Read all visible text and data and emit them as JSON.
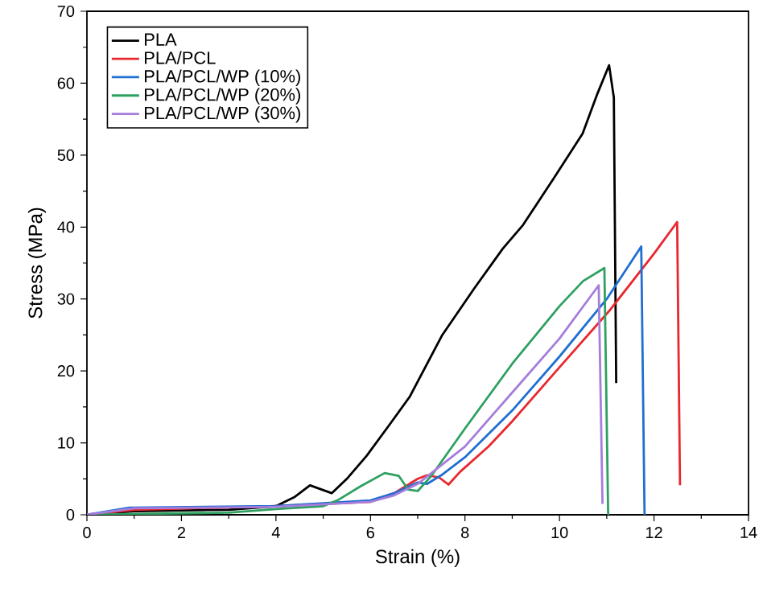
{
  "chart_data": {
    "type": "line",
    "xlabel": "Strain (%)",
    "ylabel": "Stress (MPa)",
    "xlim": [
      0,
      14
    ],
    "xticks": [
      0,
      2,
      4,
      6,
      8,
      10,
      12,
      14
    ],
    "ylim": [
      0,
      70
    ],
    "yticks": [
      0,
      10,
      20,
      30,
      40,
      50,
      60,
      70
    ],
    "grid": false,
    "legend": "top left",
    "marker": "none",
    "line_style": "solid",
    "series": [
      {
        "name": "PLA",
        "color": "#000000",
        "x": [
          0,
          1,
          3,
          4,
          4.4,
          4.72,
          5.18,
          5.5,
          5.92,
          6.4,
          6.83,
          7.52,
          8.2,
          8.8,
          9.23,
          9.9,
          10.49,
          10.8,
          11.05,
          11.15,
          11.2
        ],
        "values": [
          0,
          0.5,
          0.7,
          1.2,
          2.5,
          4.1,
          3.0,
          5,
          8.2,
          12.5,
          16.4,
          25,
          31.5,
          37,
          40.3,
          47,
          53,
          58.5,
          62.5,
          58,
          18.3
        ]
      },
      {
        "name": "PLA/PCL",
        "color": "#e8282e",
        "x": [
          0,
          1,
          4,
          6,
          6.5,
          7,
          7.2,
          7.45,
          7.65,
          7.9,
          8.5,
          9,
          10,
          11.06,
          12,
          12.49,
          12.55
        ],
        "values": [
          0,
          0.7,
          1.2,
          1.8,
          3,
          5,
          5.5,
          5.2,
          4.2,
          6,
          9.5,
          13,
          20.5,
          28.4,
          36.3,
          40.7,
          4.1
        ]
      },
      {
        "name": "PLA/PCL/WP (10%)",
        "color": "#1f6fd1",
        "x": [
          0,
          0.9,
          4,
          6,
          6.5,
          7,
          7.2,
          7.5,
          8,
          9,
          10,
          11,
          11.73,
          11.8
        ],
        "values": [
          0,
          1,
          1.2,
          2,
          3,
          4.5,
          4.3,
          5.5,
          8,
          14.5,
          22,
          30,
          37.3,
          0
        ]
      },
      {
        "name": "PLA/PCL/WP (20%)",
        "color": "#2ea060",
        "x": [
          0,
          3,
          4,
          5,
          5.3,
          5.8,
          6.3,
          6.6,
          6.8,
          7.0,
          7.3,
          8,
          9,
          10,
          10.5,
          10.95,
          11.03
        ],
        "values": [
          0,
          0.3,
          0.8,
          1.2,
          2,
          4,
          5.8,
          5.4,
          3.5,
          3.3,
          5.5,
          12,
          21,
          29,
          32.5,
          34.3,
          0
        ]
      },
      {
        "name": "PLA/PCL/WP (30%)",
        "color": "#a67ddb",
        "x": [
          0,
          1,
          4,
          6,
          6.5,
          7,
          8,
          9,
          10,
          10.83,
          10.91
        ],
        "values": [
          0,
          0.9,
          1.1,
          1.8,
          2.7,
          4.3,
          9.5,
          17,
          24.5,
          31.9,
          1.5
        ]
      }
    ]
  }
}
